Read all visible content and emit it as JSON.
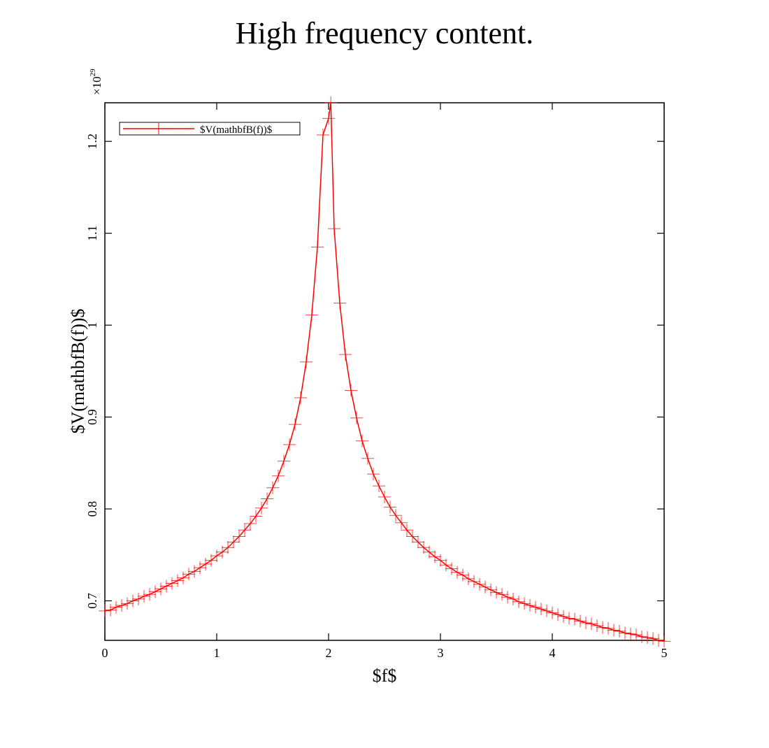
{
  "chart_data": {
    "type": "line",
    "title": "High frequency content.",
    "xlabel": "$f$",
    "ylabel": "$V(mathbfB(f))$",
    "y_multiplier": "×10",
    "y_multiplier_exponent": "29",
    "xlim": [
      0,
      5
    ],
    "ylim": [
      0.657,
      1.242
    ],
    "x_ticks": [
      0,
      1,
      2,
      3,
      4,
      5
    ],
    "x_tick_labels": [
      "0",
      "1",
      "2",
      "3",
      "4",
      "5"
    ],
    "y_ticks": [
      0.7,
      0.8,
      0.9,
      1.0,
      1.1,
      1.2
    ],
    "y_tick_labels": [
      "0.7",
      "0.8",
      "0.9",
      "1",
      "1.1",
      "1.2"
    ],
    "grid": false,
    "legend": "top-left",
    "series": [
      {
        "name": "$V(mathbfB(f))$",
        "color": "#ff0000",
        "marker": "plus",
        "x": [
          0,
          0.05,
          0.1,
          0.15,
          0.2,
          0.25,
          0.3,
          0.35,
          0.4,
          0.45,
          0.5,
          0.55,
          0.6,
          0.65,
          0.7,
          0.75,
          0.8,
          0.85,
          0.9,
          0.95,
          1.0,
          1.05,
          1.1,
          1.15,
          1.2,
          1.25,
          1.3,
          1.35,
          1.4,
          1.45,
          1.5,
          1.55,
          1.6,
          1.65,
          1.7,
          1.75,
          1.8,
          1.85,
          1.9,
          1.95,
          2.0,
          2.02,
          2.05,
          2.1,
          2.15,
          2.2,
          2.25,
          2.3,
          2.35,
          2.4,
          2.45,
          2.5,
          2.55,
          2.6,
          2.65,
          2.7,
          2.75,
          2.8,
          2.85,
          2.9,
          2.95,
          3.0,
          3.05,
          3.1,
          3.15,
          3.2,
          3.25,
          3.3,
          3.35,
          3.4,
          3.45,
          3.5,
          3.55,
          3.6,
          3.65,
          3.7,
          3.75,
          3.8,
          3.85,
          3.9,
          3.95,
          4.0,
          4.05,
          4.1,
          4.15,
          4.2,
          4.25,
          4.3,
          4.35,
          4.4,
          4.45,
          4.5,
          4.55,
          4.6,
          4.65,
          4.7,
          4.75,
          4.8,
          4.85,
          4.9,
          4.95,
          5.0
        ],
        "values": [
          0.689,
          0.69,
          0.693,
          0.695,
          0.697,
          0.7,
          0.702,
          0.705,
          0.707,
          0.71,
          0.713,
          0.716,
          0.719,
          0.722,
          0.725,
          0.729,
          0.732,
          0.736,
          0.74,
          0.744,
          0.749,
          0.753,
          0.758,
          0.764,
          0.77,
          0.777,
          0.784,
          0.792,
          0.801,
          0.811,
          0.823,
          0.836,
          0.852,
          0.87,
          0.892,
          0.921,
          0.96,
          1.011,
          1.085,
          1.207,
          1.225,
          1.242,
          1.105,
          1.024,
          0.968,
          0.929,
          0.899,
          0.874,
          0.855,
          0.838,
          0.825,
          0.813,
          0.802,
          0.793,
          0.785,
          0.777,
          0.77,
          0.764,
          0.758,
          0.753,
          0.748,
          0.744,
          0.739,
          0.735,
          0.731,
          0.728,
          0.724,
          0.721,
          0.718,
          0.715,
          0.712,
          0.709,
          0.707,
          0.704,
          0.702,
          0.699,
          0.697,
          0.695,
          0.693,
          0.691,
          0.689,
          0.687,
          0.685,
          0.683,
          0.681,
          0.68,
          0.678,
          0.676,
          0.675,
          0.673,
          0.671,
          0.67,
          0.668,
          0.667,
          0.665,
          0.664,
          0.663,
          0.661,
          0.66,
          0.659,
          0.657,
          0.656
        ]
      }
    ]
  }
}
